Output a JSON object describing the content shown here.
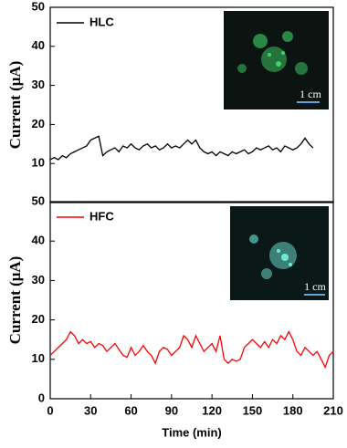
{
  "chart_data": [
    {
      "type": "line",
      "ylabel": "Current (μA)",
      "xlim": [
        0,
        210
      ],
      "ylim": [
        0,
        50
      ],
      "yticks": [
        10,
        20,
        30,
        40,
        50
      ],
      "inset_scale_label": "1 cm",
      "x": [
        0,
        3,
        6,
        9,
        12,
        15,
        18,
        21,
        24,
        27,
        30,
        33,
        36,
        39,
        42,
        45,
        48,
        51,
        54,
        57,
        60,
        63,
        66,
        69,
        72,
        75,
        78,
        81,
        84,
        87,
        90,
        93,
        96,
        99,
        102,
        105,
        108,
        111,
        114,
        117,
        120,
        123,
        126,
        129,
        132,
        135,
        138,
        141,
        144,
        147,
        150,
        153,
        156,
        159,
        162,
        165,
        168,
        171,
        174,
        177,
        180,
        183,
        186,
        189,
        192,
        195
      ],
      "series": [
        {
          "name": "HLC",
          "color": "#000000",
          "values": [
            11,
            11.5,
            11,
            12,
            11.5,
            12.5,
            13,
            13.5,
            14,
            14.5,
            16,
            16.5,
            17,
            12,
            13,
            13.5,
            14,
            13,
            14.5,
            14,
            15,
            14,
            13.5,
            14.5,
            15,
            14,
            14.5,
            13.5,
            14,
            15,
            14,
            14.5,
            14,
            15,
            16,
            15,
            16,
            14,
            13,
            12.5,
            13,
            12,
            13,
            12.5,
            12,
            13,
            12.5,
            13,
            13.5,
            12.5,
            13,
            14,
            13.5,
            14,
            14.5,
            13.5,
            14,
            13,
            14.5,
            14,
            13.5,
            14,
            15,
            16.5,
            15,
            14
          ]
        }
      ]
    },
    {
      "type": "line",
      "ylabel": "Current (μA)",
      "xlabel": "Time (min)",
      "xlim": [
        0,
        210
      ],
      "xticks": [
        0,
        30,
        60,
        90,
        120,
        150,
        180,
        210
      ],
      "ylim": [
        0,
        50
      ],
      "yticks": [
        0,
        10,
        20,
        30,
        40,
        50
      ],
      "inset_scale_label": "1 cm",
      "x": [
        0,
        3,
        6,
        9,
        12,
        15,
        18,
        21,
        24,
        27,
        30,
        33,
        36,
        39,
        42,
        45,
        48,
        51,
        54,
        57,
        60,
        63,
        66,
        69,
        72,
        75,
        78,
        81,
        84,
        87,
        90,
        93,
        96,
        99,
        102,
        105,
        108,
        111,
        114,
        117,
        120,
        123,
        126,
        129,
        132,
        135,
        138,
        141,
        144,
        147,
        150,
        153,
        156,
        159,
        162,
        165,
        168,
        171,
        174,
        177,
        180,
        183,
        186,
        189,
        192,
        195,
        198,
        201,
        204,
        207,
        210
      ],
      "series": [
        {
          "name": "HFC",
          "color": "#ff0000",
          "values": [
            11,
            12,
            13,
            14,
            15,
            17,
            16,
            14,
            15,
            14,
            14.5,
            13,
            14,
            13.5,
            12,
            13,
            14,
            12.5,
            11,
            10.5,
            13,
            11,
            12,
            13.5,
            12,
            11,
            9,
            12,
            13,
            12.5,
            11,
            12,
            13,
            16,
            15,
            13,
            16,
            14,
            12,
            13,
            14,
            12,
            16,
            10,
            9,
            10,
            9.5,
            10,
            13,
            14,
            15,
            14,
            13,
            14.5,
            13,
            15,
            14,
            16,
            15,
            17,
            15,
            12,
            11,
            13,
            12,
            11,
            12,
            10,
            8,
            11,
            12
          ]
        }
      ]
    }
  ]
}
